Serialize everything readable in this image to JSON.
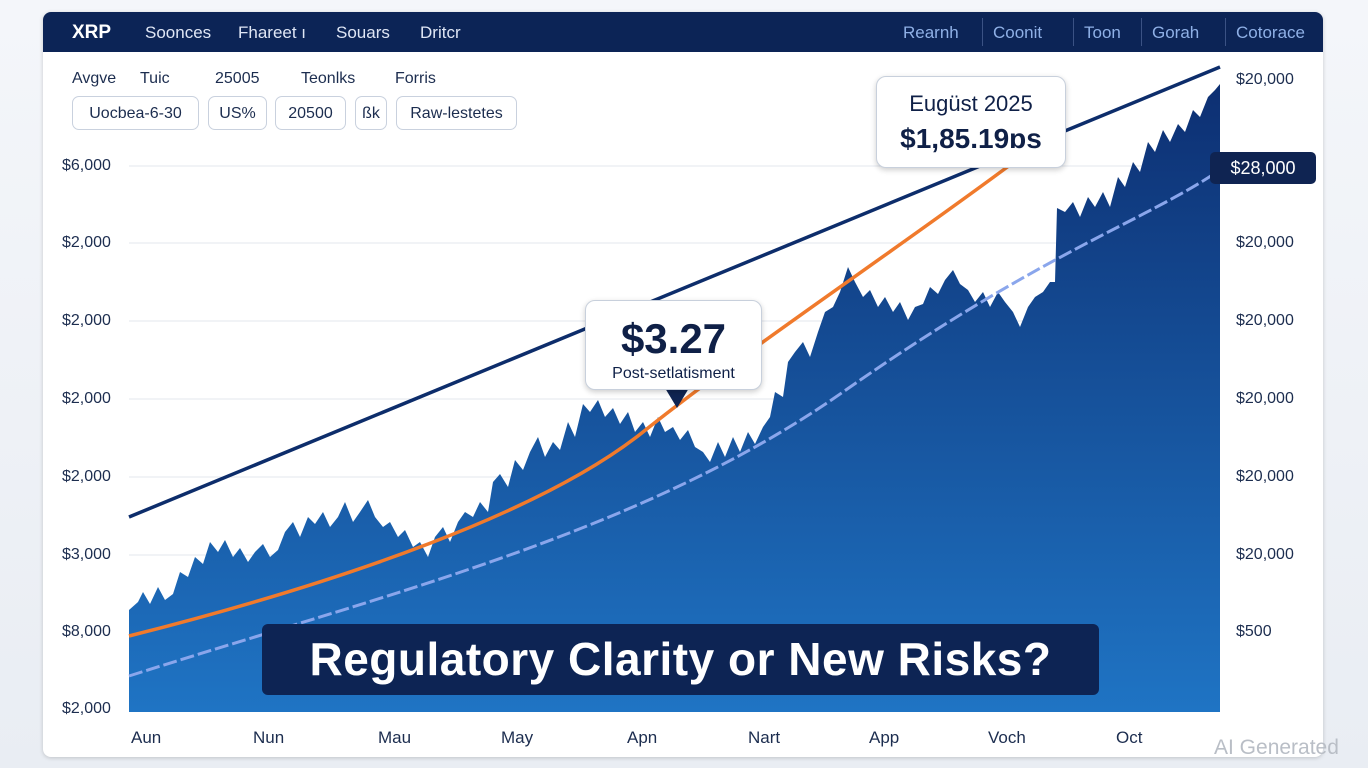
{
  "header": {
    "brand": "XRP",
    "nav": [
      "Soonces",
      "Fhareet ı",
      "Souars",
      "Dritcr"
    ],
    "right_nav": [
      "Rearnh",
      "Coonit",
      "Toon",
      "Gorah",
      "Cotorace"
    ]
  },
  "controls": {
    "labels": [
      "Avgve",
      "Tuic",
      "25005",
      "Teonlks",
      "Forris"
    ],
    "inputs": [
      "Uocbea-6-30",
      "US%",
      "20500",
      "ßk",
      "Raw-lestetes"
    ]
  },
  "chart": {
    "left_axis": [
      "$6,000",
      "$2,000",
      "$2,000",
      "$2,000",
      "$2,000",
      "$3,000",
      "$8,000",
      "$2,000"
    ],
    "right_axis": [
      "$20,000",
      "$20,000",
      "$20,000",
      "$20,000",
      "$20,000",
      "$20,000",
      "$500"
    ],
    "badge": "$28,000",
    "x_axis": [
      "Aun",
      "Nun",
      "Mau",
      "May",
      "Apn",
      "Nart",
      "App",
      "Voch",
      "Oct"
    ],
    "callouts": [
      {
        "value": "$3.27",
        "label": "Post-setlatisment"
      },
      {
        "title": "Eugüst 2025",
        "value": "$1,85.19ɒs"
      }
    ],
    "banner": "Regulatory Clarity or New Risks?"
  },
  "watermark": "AI Generated"
}
